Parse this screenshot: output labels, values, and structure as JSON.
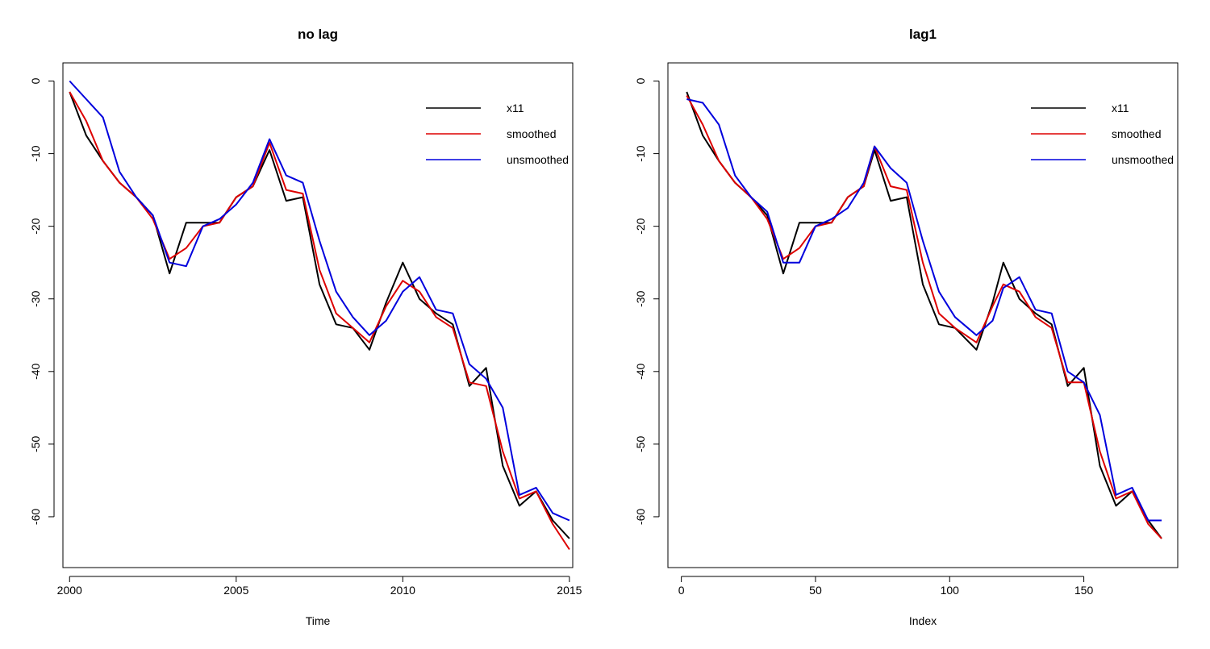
{
  "colors": {
    "x11": "#000000",
    "smoothed": "#dd0000",
    "unsmoothed": "#0000dd"
  },
  "chart_data": [
    {
      "type": "line",
      "title": "no lag",
      "xlabel": "Time",
      "ylabel": "",
      "xlim": [
        1999.8,
        2015.1
      ],
      "ylim": [
        -67,
        2.5
      ],
      "xticks": [
        2000,
        2005,
        2010,
        2015
      ],
      "yticks": [
        0,
        -10,
        -20,
        -30,
        -40,
        -50,
        -60
      ],
      "legend": {
        "position": "top-right",
        "entries": [
          "x11",
          "smoothed",
          "unsmoothed"
        ]
      },
      "grid": false,
      "series": [
        {
          "name": "x11",
          "x": [
            2000.0,
            2000.5,
            2001.0,
            2001.5,
            2002.0,
            2002.5,
            2003.0,
            2003.5,
            2004.0,
            2004.5,
            2005.0,
            2005.5,
            2006.0,
            2006.5,
            2007.0,
            2007.5,
            2008.0,
            2008.5,
            2009.0,
            2009.5,
            2010.0,
            2010.5,
            2011.0,
            2011.5,
            2012.0,
            2012.5,
            2013.0,
            2013.5,
            2014.0,
            2014.5,
            2015.0
          ],
          "y": [
            -1.5,
            -7.5,
            -11.0,
            -14.0,
            -16.0,
            -18.5,
            -26.5,
            -19.5,
            -19.5,
            -19.5,
            -16.0,
            -14.5,
            -9.5,
            -16.5,
            -16.0,
            -28.0,
            -33.5,
            -34.0,
            -37.0,
            -30.5,
            -25.0,
            -30.0,
            -32.0,
            -33.5,
            -42.0,
            -39.5,
            -53.0,
            -58.5,
            -56.5,
            -60.5,
            -63.0
          ]
        },
        {
          "name": "smoothed",
          "x": [
            2000.0,
            2000.5,
            2001.0,
            2001.5,
            2002.0,
            2002.5,
            2003.0,
            2003.5,
            2004.0,
            2004.5,
            2005.0,
            2005.5,
            2006.0,
            2006.5,
            2007.0,
            2007.5,
            2008.0,
            2008.5,
            2009.0,
            2009.5,
            2010.0,
            2010.5,
            2011.0,
            2011.5,
            2012.0,
            2012.5,
            2013.0,
            2013.5,
            2014.0,
            2014.5,
            2015.0
          ],
          "y": [
            -1.5,
            -5.5,
            -11.0,
            -14.0,
            -16.0,
            -19.0,
            -24.5,
            -23.0,
            -20.0,
            -19.5,
            -16.0,
            -14.5,
            -8.5,
            -15.0,
            -15.5,
            -26.0,
            -32.0,
            -34.0,
            -36.0,
            -31.0,
            -27.5,
            -29.0,
            -32.5,
            -34.0,
            -41.5,
            -42.0,
            -51.0,
            -57.5,
            -56.5,
            -61.0,
            -64.5
          ]
        },
        {
          "name": "unsmoothed",
          "x": [
            2000.0,
            2000.5,
            2001.0,
            2001.5,
            2002.0,
            2002.5,
            2003.0,
            2003.5,
            2004.0,
            2004.5,
            2005.0,
            2005.5,
            2006.0,
            2006.5,
            2007.0,
            2007.5,
            2008.0,
            2008.5,
            2009.0,
            2009.5,
            2010.0,
            2010.5,
            2011.0,
            2011.5,
            2012.0,
            2012.5,
            2013.0,
            2013.5,
            2014.0,
            2014.5,
            2015.0
          ],
          "y": [
            0.0,
            -2.5,
            -5.0,
            -12.5,
            -16.0,
            -18.5,
            -25.0,
            -25.5,
            -20.0,
            -19.0,
            -17.0,
            -14.0,
            -8.0,
            -13.0,
            -14.0,
            -22.0,
            -29.0,
            -32.5,
            -35.0,
            -33.0,
            -29.0,
            -27.0,
            -31.5,
            -32.0,
            -39.0,
            -41.0,
            -45.0,
            -57.0,
            -56.0,
            -59.5,
            -60.5
          ]
        }
      ]
    },
    {
      "type": "line",
      "title": "lag1",
      "xlabel": "Index",
      "ylabel": "",
      "xlim": [
        -5,
        185
      ],
      "ylim": [
        -67,
        2.5
      ],
      "xticks": [
        0,
        50,
        100,
        150
      ],
      "yticks": [
        0,
        -10,
        -20,
        -30,
        -40,
        -50,
        -60
      ],
      "legend": {
        "position": "top-right",
        "entries": [
          "x11",
          "smoothed",
          "unsmoothed"
        ]
      },
      "grid": false,
      "series": [
        {
          "name": "x11",
          "x": [
            2,
            8,
            14,
            20,
            26,
            32,
            38,
            44,
            50,
            56,
            62,
            68,
            72,
            78,
            84,
            90,
            96,
            102,
            110,
            116,
            120,
            126,
            132,
            138,
            144,
            150,
            156,
            162,
            168,
            174,
            179
          ],
          "y": [
            -1.5,
            -7.5,
            -11.0,
            -14.0,
            -16.0,
            -18.5,
            -26.5,
            -19.5,
            -19.5,
            -19.5,
            -16.0,
            -14.5,
            -9.5,
            -16.5,
            -16.0,
            -28.0,
            -33.5,
            -34.0,
            -37.0,
            -30.5,
            -25.0,
            -30.0,
            -32.0,
            -33.5,
            -42.0,
            -39.5,
            -53.0,
            -58.5,
            -56.5,
            -60.5,
            -63.0
          ]
        },
        {
          "name": "smoothed",
          "x": [
            2,
            8,
            14,
            20,
            26,
            32,
            38,
            44,
            50,
            56,
            62,
            68,
            72,
            78,
            84,
            90,
            96,
            102,
            110,
            116,
            120,
            126,
            132,
            138,
            144,
            150,
            156,
            162,
            168,
            174,
            179
          ],
          "y": [
            -2.0,
            -6.0,
            -11.0,
            -14.0,
            -16.0,
            -19.0,
            -24.5,
            -23.0,
            -20.0,
            -19.5,
            -16.0,
            -14.5,
            -9.0,
            -14.5,
            -15.0,
            -25.0,
            -32.0,
            -34.0,
            -36.0,
            -31.0,
            -28.0,
            -29.0,
            -32.5,
            -34.0,
            -41.5,
            -41.5,
            -51.0,
            -57.5,
            -56.5,
            -61.0,
            -63.0
          ]
        },
        {
          "name": "unsmoothed",
          "x": [
            2,
            8,
            14,
            20,
            26,
            32,
            38,
            44,
            50,
            56,
            62,
            68,
            72,
            78,
            84,
            90,
            96,
            102,
            110,
            116,
            120,
            126,
            132,
            138,
            144,
            150,
            156,
            162,
            168,
            174,
            179
          ],
          "y": [
            -2.5,
            -3.0,
            -6.0,
            -13.0,
            -16.0,
            -18.0,
            -25.0,
            -25.0,
            -20.0,
            -19.0,
            -17.5,
            -14.0,
            -9.0,
            -12.0,
            -14.0,
            -22.0,
            -29.0,
            -32.5,
            -35.0,
            -33.0,
            -28.5,
            -27.0,
            -31.5,
            -32.0,
            -40.0,
            -41.5,
            -46.0,
            -57.0,
            -56.0,
            -60.5,
            -60.5
          ]
        }
      ]
    }
  ]
}
